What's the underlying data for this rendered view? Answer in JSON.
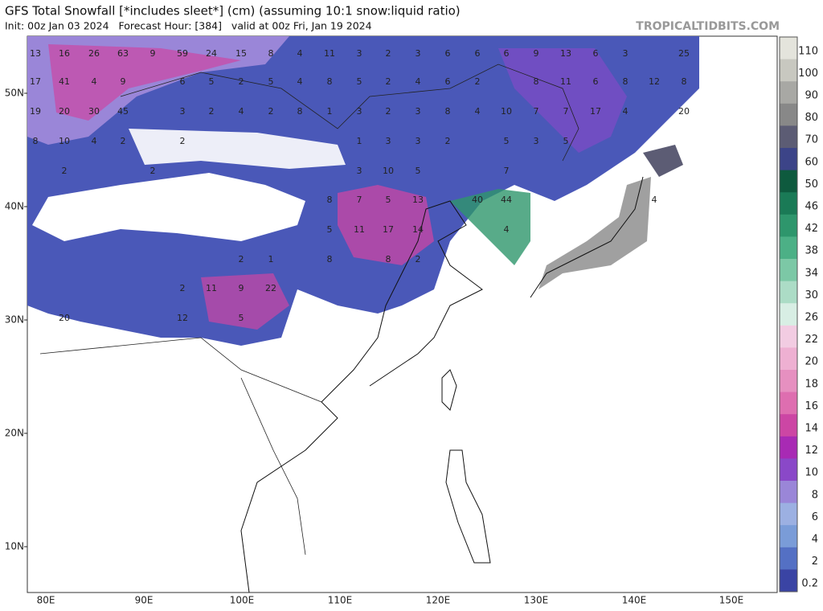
{
  "header": {
    "title": "GFS Total Snowfall [*includes sleet*] (cm) (assuming 10:1 snow:liquid ratio)",
    "subtitle": "Init: 00z Jan 03 2024   Forecast Hour: [384]   valid at 00z Fri, Jan 19 2024",
    "source": "TROPICALTIDBITS.COM"
  },
  "map": {
    "lat_labels": [
      "50N",
      "40N",
      "30N",
      "20N",
      "10N"
    ],
    "lon_labels": [
      "80E",
      "90E",
      "100E",
      "110E",
      "120E",
      "130E",
      "140E",
      "150E"
    ],
    "labels": [
      "13",
      "16",
      "26",
      "63",
      "9",
      "59",
      "24",
      "15",
      "8",
      "4",
      "11",
      "3",
      "2",
      "3",
      "6",
      "6",
      "6",
      "9",
      "13",
      "6",
      "3",
      "25",
      "17",
      "41",
      "4",
      "9",
      "6",
      "5",
      "2",
      "5",
      "4",
      "8",
      "5",
      "2",
      "4",
      "6",
      "2",
      "8",
      "11",
      "6",
      "8",
      "12",
      "8",
      "19",
      "20",
      "30",
      "45",
      "3",
      "2",
      "4",
      "2",
      "8",
      "1",
      "3",
      "2",
      "3",
      "8",
      "4",
      "10",
      "7",
      "7",
      "17",
      "4",
      "20",
      "8",
      "10",
      "4",
      "2",
      "2",
      "1",
      "3",
      "3",
      "2",
      "5",
      "3",
      "5",
      "2",
      "2",
      "3",
      "10",
      "5",
      "7",
      "8",
      "7",
      "5",
      "13",
      "40",
      "44",
      "4",
      "5",
      "11",
      "17",
      "14",
      "4",
      "2",
      "1",
      "8",
      "8",
      "2",
      "2",
      "11",
      "9",
      "22",
      "20",
      "12",
      "5"
    ]
  },
  "colorbar": {
    "levels": [
      {
        "label": "110",
        "color": "#e4e4dc"
      },
      {
        "label": "100",
        "color": "#c8c8c0"
      },
      {
        "label": "90",
        "color": "#a8a8a4"
      },
      {
        "label": "80",
        "color": "#888888"
      },
      {
        "label": "70",
        "color": "#5c5c74"
      },
      {
        "label": "60",
        "color": "#3c4488"
      },
      {
        "label": "50",
        "color": "#0e5a3e"
      },
      {
        "label": "46",
        "color": "#1a7a56"
      },
      {
        "label": "42",
        "color": "#2e966c"
      },
      {
        "label": "38",
        "color": "#4cb086"
      },
      {
        "label": "34",
        "color": "#7cc8a6"
      },
      {
        "label": "30",
        "color": "#acdcc6"
      },
      {
        "label": "26",
        "color": "#d8eee4"
      },
      {
        "label": "22",
        "color": "#f2cce2"
      },
      {
        "label": "20",
        "color": "#eeb0d2"
      },
      {
        "label": "18",
        "color": "#e690c0"
      },
      {
        "label": "16",
        "color": "#de6eb0"
      },
      {
        "label": "14",
        "color": "#cc46a4"
      },
      {
        "label": "12",
        "color": "#a82ab4"
      },
      {
        "label": "10",
        "color": "#8a48c8"
      },
      {
        "label": "8",
        "color": "#9a86d8"
      },
      {
        "label": "6",
        "color": "#9cb0e2"
      },
      {
        "label": "4",
        "color": "#7a9cd8"
      },
      {
        "label": "2",
        "color": "#5470c4"
      },
      {
        "label": "0.2",
        "color": "#3a44a4"
      }
    ]
  }
}
